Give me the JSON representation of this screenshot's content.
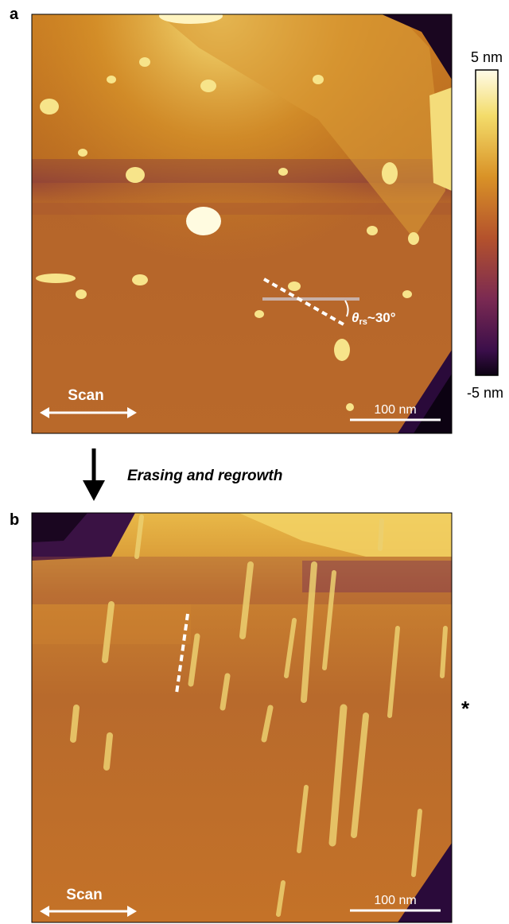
{
  "panel_a": {
    "label": "a",
    "scan_label": "Scan",
    "scale_bar": "100 nm",
    "angle": {
      "symbol": "θ",
      "subscript": "rs",
      "text": "~30°"
    }
  },
  "colorbar": {
    "max_label": "5 nm",
    "min_label": "-5 nm"
  },
  "process": {
    "label": "Erasing and regrowth"
  },
  "panel_b": {
    "label": "b",
    "scan_label": "Scan",
    "scale_bar": "100 nm",
    "marker": "*"
  }
}
